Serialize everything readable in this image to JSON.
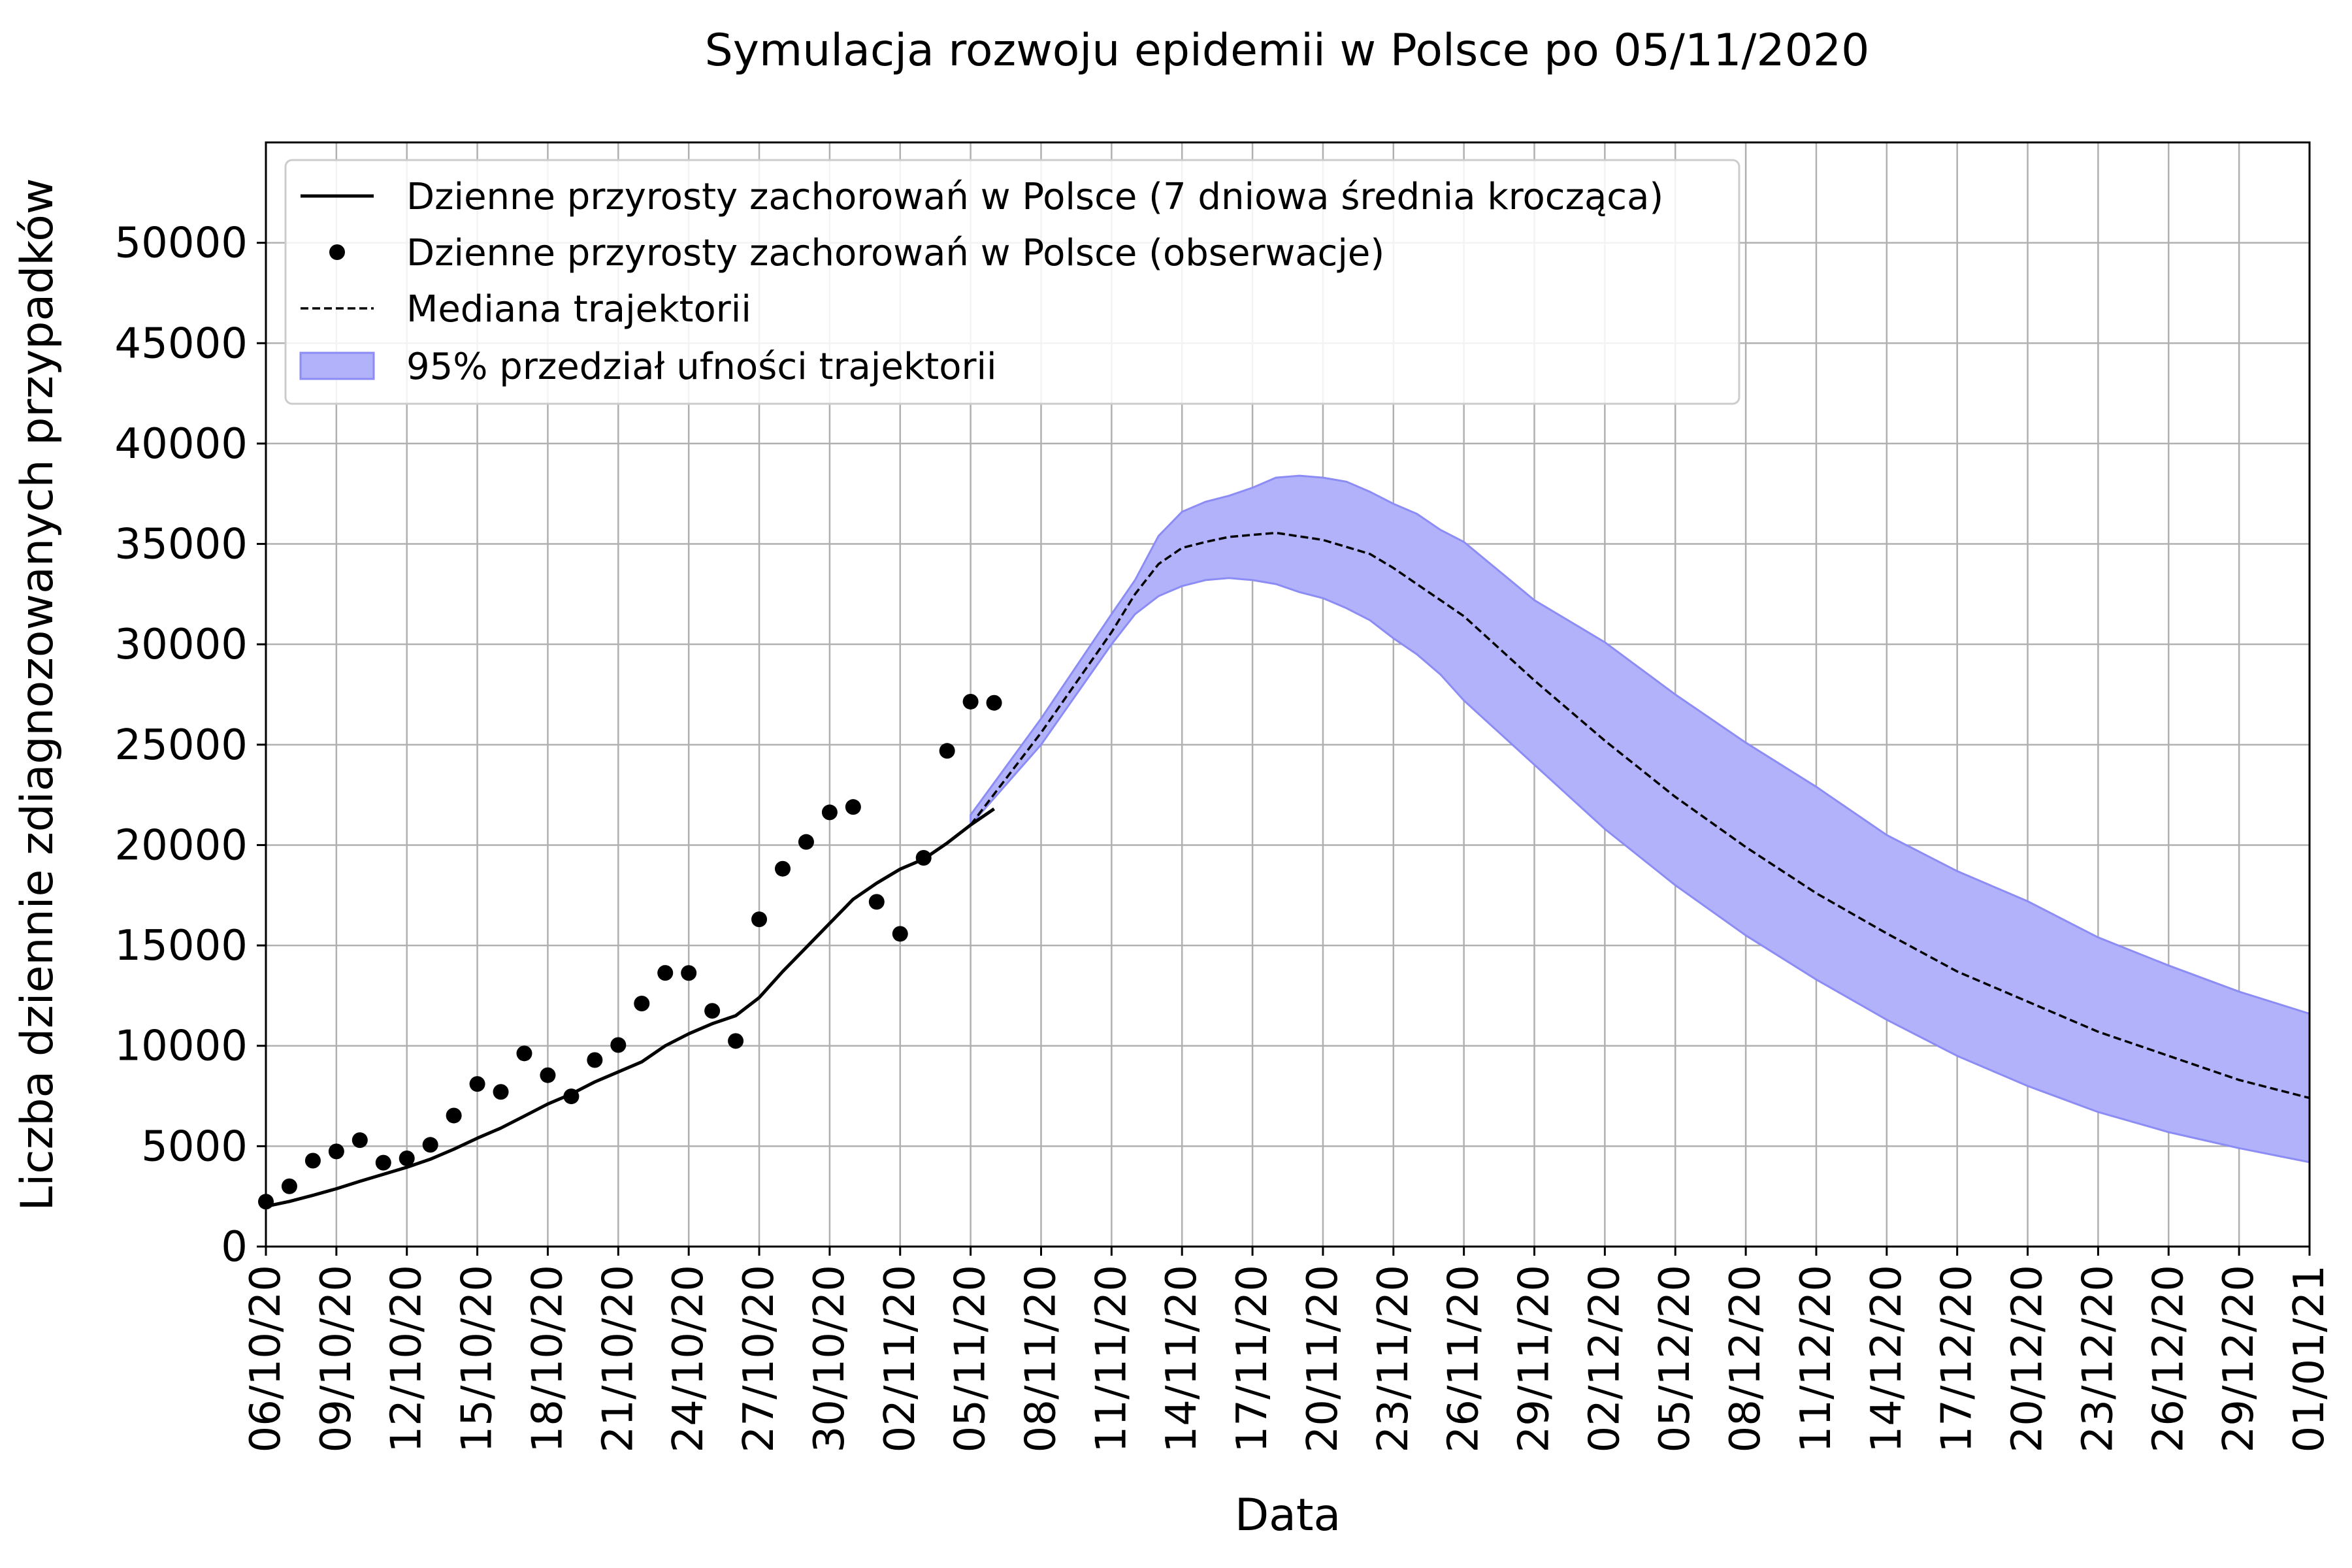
{
  "chart_data": {
    "type": "line",
    "title": "Symulacja rozwoju epidemii w Polsce po 05/11/2020",
    "xlabel": "Data",
    "ylabel": "Liczba dziennie zdiagnozowanych przypadków",
    "ylim": [
      0,
      55000
    ],
    "xlim": [
      "06/10/20",
      "01/01/21"
    ],
    "grid": true,
    "legend_position": "top-left",
    "colors": {
      "observed_line": "#000000",
      "median": "#000000",
      "band_fill": "#b2b2fb",
      "band_edge": "#8c8cf5",
      "grid": "#b0b0b0"
    },
    "yticks": [
      0,
      5000,
      10000,
      15000,
      20000,
      25000,
      30000,
      35000,
      40000,
      45000,
      50000
    ],
    "xticks": [
      "06/10/20",
      "09/10/20",
      "12/10/20",
      "15/10/20",
      "18/10/20",
      "21/10/20",
      "24/10/20",
      "27/10/20",
      "30/10/20",
      "02/11/20",
      "05/11/20",
      "08/11/20",
      "11/11/20",
      "14/11/20",
      "17/11/20",
      "20/11/20",
      "23/11/20",
      "26/11/20",
      "29/11/20",
      "02/12/20",
      "05/12/20",
      "08/12/20",
      "11/12/20",
      "14/12/20",
      "17/12/20",
      "20/12/20",
      "23/12/20",
      "26/12/20",
      "29/12/20",
      "01/01/21"
    ],
    "legend": [
      {
        "kind": "line",
        "label": "Dzienne przyrosty zachorowań w Polsce (7 dniowa średnia krocząca)"
      },
      {
        "kind": "dot",
        "label": "Dzienne przyrosty zachorowań w Polsce (obserwacje)"
      },
      {
        "kind": "dashed",
        "label": "Mediana trajektorii"
      },
      {
        "kind": "patch",
        "label": "95% przedział ufności trajektorii"
      }
    ],
    "series": [
      {
        "name": "Dzienne przyrosty zachorowań w Polsce (7 dniowa średnia krocząca)",
        "style": "line",
        "x": [
          "06/10/20",
          "07/10/20",
          "08/10/20",
          "09/10/20",
          "10/10/20",
          "11/10/20",
          "12/10/20",
          "13/10/20",
          "14/10/20",
          "15/10/20",
          "16/10/20",
          "17/10/20",
          "18/10/20",
          "19/10/20",
          "20/10/20",
          "21/10/20",
          "22/10/20",
          "23/10/20",
          "24/10/20",
          "25/10/20",
          "26/10/20",
          "27/10/20",
          "28/10/20",
          "29/10/20",
          "30/10/20",
          "31/10/20",
          "01/11/20",
          "02/11/20",
          "03/11/20",
          "04/11/20",
          "05/11/20",
          "06/11/20"
        ],
        "y": [
          2000,
          2250,
          2550,
          2880,
          3250,
          3600,
          3950,
          4350,
          4850,
          5400,
          5900,
          6500,
          7100,
          7600,
          8200,
          8700,
          9200,
          10000,
          10600,
          11100,
          11500,
          12400,
          13700,
          14900,
          16100,
          17300,
          18100,
          18800,
          19300,
          20100,
          21000,
          21800
        ]
      },
      {
        "name": "Dzienne przyrosty zachorowań w Polsce (obserwacje)",
        "style": "scatter",
        "x": [
          "06/10/20",
          "07/10/20",
          "08/10/20",
          "09/10/20",
          "10/10/20",
          "11/10/20",
          "12/10/20",
          "13/10/20",
          "14/10/20",
          "15/10/20",
          "16/10/20",
          "17/10/20",
          "18/10/20",
          "19/10/20",
          "20/10/20",
          "21/10/20",
          "22/10/20",
          "23/10/20",
          "24/10/20",
          "25/10/20",
          "26/10/20",
          "27/10/20",
          "28/10/20",
          "29/10/20",
          "30/10/20",
          "31/10/20",
          "01/11/20",
          "02/11/20",
          "03/11/20",
          "04/11/20",
          "05/11/20",
          "06/11/20"
        ],
        "y": [
          2236,
          3003,
          4280,
          4739,
          5300,
          4178,
          4394,
          5068,
          6526,
          8099,
          7705,
          9622,
          8536,
          7482,
          9291,
          10040,
          12107,
          13632,
          13628,
          11742,
          10241,
          16300,
          18820,
          20156,
          21629,
          21897,
          17171,
          15578,
          19364,
          24692,
          27143,
          27086
        ]
      },
      {
        "name": "Mediana trajektorii",
        "style": "dashed",
        "x": [
          "05/11/20",
          "08/11/20",
          "11/11/20",
          "12/11/20",
          "13/11/20",
          "14/11/20",
          "15/11/20",
          "16/11/20",
          "17/11/20",
          "18/11/20",
          "20/11/20",
          "22/11/20",
          "23/11/20",
          "24/11/20",
          "26/11/20",
          "29/11/20",
          "02/12/20",
          "05/12/20",
          "08/12/20",
          "11/12/20",
          "14/12/20",
          "17/12/20",
          "20/12/20",
          "23/12/20",
          "26/12/20",
          "29/12/20",
          "01/01/21"
        ],
        "y": [
          21000,
          25600,
          30600,
          32500,
          34000,
          34800,
          35100,
          35350,
          35450,
          35550,
          35200,
          34500,
          33800,
          33000,
          31400,
          28200,
          25200,
          22400,
          19900,
          17600,
          15600,
          13700,
          12200,
          10700,
          9500,
          8300,
          7400
        ]
      }
    ],
    "band": {
      "name": "95% przedział ufności trajektorii",
      "x": [
        "05/11/20",
        "08/11/20",
        "11/11/20",
        "12/11/20",
        "13/11/20",
        "14/11/20",
        "15/11/20",
        "16/11/20",
        "17/11/20",
        "18/11/20",
        "19/11/20",
        "20/11/20",
        "21/11/20",
        "22/11/20",
        "23/11/20",
        "24/11/20",
        "25/11/20",
        "26/11/20",
        "29/11/20",
        "02/12/20",
        "05/12/20",
        "08/12/20",
        "11/12/20",
        "14/12/20",
        "17/12/20",
        "20/12/20",
        "23/12/20",
        "26/12/20",
        "29/12/20",
        "01/01/21"
      ],
      "lower": [
        21000,
        25000,
        30000,
        31500,
        32400,
        32900,
        33200,
        33300,
        33200,
        33000,
        32600,
        32300,
        31800,
        31200,
        30300,
        29500,
        28500,
        27200,
        24000,
        20800,
        18000,
        15500,
        13300,
        11300,
        9500,
        8000,
        6700,
        5700,
        4900,
        4200
      ],
      "upper": [
        21500,
        26300,
        31500,
        33200,
        35400,
        36600,
        37100,
        37400,
        37800,
        38300,
        38400,
        38300,
        38100,
        37600,
        37000,
        36500,
        35700,
        35100,
        32200,
        30100,
        27500,
        25100,
        22900,
        20500,
        18700,
        17200,
        15400,
        14000,
        12700,
        11600
      ]
    }
  }
}
